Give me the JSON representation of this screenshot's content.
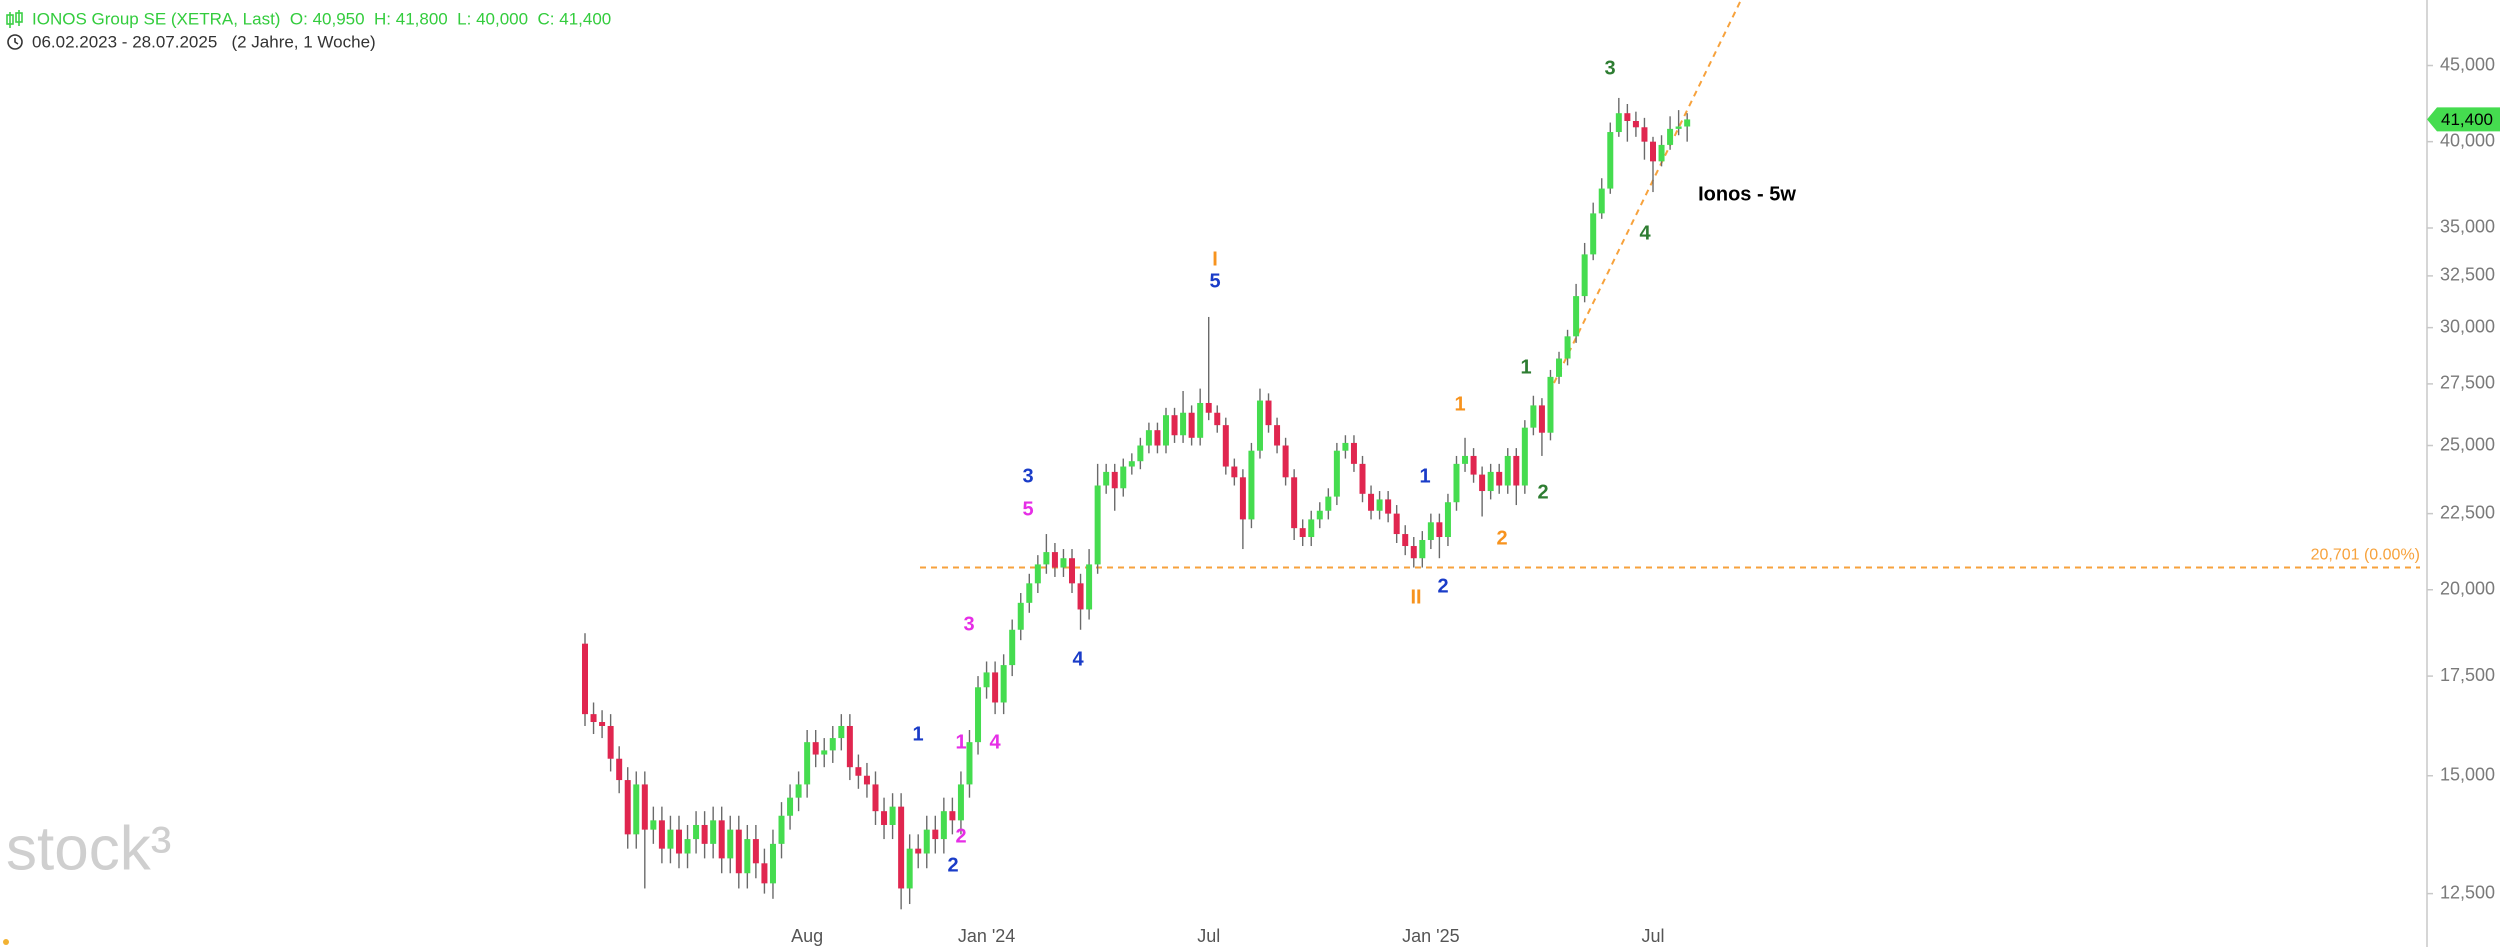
{
  "chart_data": {
    "type": "candlestick",
    "title": "IONOS Group SE (XETRA, Last)  O: 40,950  H: 41,800  L: 40,000  C: 41,400",
    "subtitle": "06.02.2023 - 28.07.2025   (2 Jahre, 1 Woche)",
    "watermark": "stock³",
    "categories": [
      null,
      null,
      null,
      null,
      null,
      null,
      null,
      null,
      null,
      null,
      null,
      null,
      null,
      null,
      null,
      null,
      null,
      null,
      null,
      null,
      null,
      null,
      null,
      null,
      null,
      null,
      "Aug",
      null,
      null,
      null,
      null,
      null,
      null,
      null,
      null,
      null,
      null,
      null,
      null,
      null,
      null,
      null,
      null,
      null,
      null,
      null,
      null,
      "Jan '24",
      null,
      null,
      null,
      null,
      null,
      null,
      null,
      null,
      null,
      null,
      null,
      null,
      null,
      null,
      null,
      null,
      null,
      null,
      null,
      null,
      null,
      null,
      null,
      null,
      null,
      "Jul",
      null,
      null,
      null,
      null,
      null,
      null,
      null,
      null,
      null,
      null,
      null,
      null,
      null,
      null,
      null,
      null,
      null,
      null,
      null,
      null,
      null,
      null,
      null,
      null,
      null,
      "Jan '25",
      null,
      null,
      null,
      null,
      null,
      null,
      null,
      null,
      null,
      null,
      null,
      null,
      null,
      null,
      null,
      null,
      null,
      null,
      null,
      null,
      null,
      null,
      null,
      null,
      null,
      "Jul",
      null,
      null,
      null,
      null
    ],
    "open": [
      18400,
      16500,
      16300,
      16200,
      15400,
      14900,
      13700,
      14800,
      13800,
      14000,
      13400,
      13800,
      13300,
      13600,
      13900,
      13500,
      14000,
      13200,
      13800,
      12900,
      13600,
      13100,
      12700,
      13500,
      14100,
      14500,
      14800,
      15800,
      15500,
      15600,
      15900,
      16200,
      15200,
      15000,
      14800,
      14200,
      13900,
      14300,
      12600,
      13400,
      13300,
      13800,
      13600,
      14200,
      14000,
      14800,
      15800,
      17200,
      17600,
      16800,
      17800,
      18800,
      19600,
      20200,
      20800,
      21200,
      20700,
      21000,
      20200,
      19400,
      20800,
      23500,
      24000,
      23400,
      24200,
      24400,
      25000,
      25600,
      25000,
      26200,
      25400,
      26300,
      25300,
      26700,
      26300,
      25800,
      24200,
      23800,
      22300,
      24800,
      26800,
      25800,
      25000,
      23800,
      22000,
      21700,
      22300,
      22600,
      23100,
      24800,
      25100,
      24300,
      23200,
      22600,
      23000,
      22500,
      21800,
      21400,
      21000,
      21600,
      22200,
      21700,
      22900,
      24300,
      24600,
      23900,
      23300,
      24000,
      23500,
      24600,
      23500,
      25700,
      26600,
      25500,
      27800,
      28600,
      29600,
      31500,
      33600,
      35800,
      37200,
      40600,
      41800,
      41300,
      40900,
      40000,
      38800,
      39800,
      40800,
      40950
    ],
    "high": [
      18700,
      16800,
      16600,
      16500,
      15700,
      15200,
      15100,
      15100,
      14300,
      14300,
      14100,
      14100,
      13900,
      14200,
      14200,
      14300,
      14300,
      14100,
      14100,
      13900,
      13900,
      13400,
      13800,
      14400,
      14800,
      15100,
      16100,
      16100,
      15900,
      16200,
      16500,
      16500,
      15500,
      15300,
      15100,
      14500,
      14600,
      14600,
      13700,
      13700,
      14100,
      14100,
      14500,
      14500,
      15100,
      16100,
      17500,
      17900,
      17900,
      18100,
      19100,
      19900,
      20500,
      21100,
      21800,
      21500,
      21300,
      21300,
      20500,
      21300,
      24300,
      24300,
      24300,
      24500,
      24700,
      25300,
      25900,
      25900,
      26500,
      26500,
      27200,
      26600,
      27300,
      30500,
      26600,
      26100,
      24500,
      24100,
      25100,
      27300,
      27100,
      26100,
      25300,
      24100,
      22300,
      22600,
      22900,
      23400,
      25100,
      25400,
      25400,
      24600,
      23500,
      23300,
      23300,
      22800,
      22100,
      21700,
      21900,
      22500,
      22500,
      23200,
      24600,
      25300,
      24900,
      24200,
      24300,
      24300,
      24900,
      24900,
      26000,
      27000,
      26900,
      28100,
      28900,
      29900,
      32100,
      34200,
      36400,
      37800,
      41200,
      42800,
      42400,
      41900,
      41500,
      40300,
      40400,
      41600,
      42000,
      41800
    ],
    "low": [
      16200,
      16000,
      15900,
      15100,
      14600,
      13400,
      13400,
      12600,
      13500,
      13100,
      13100,
      13000,
      13000,
      13300,
      13200,
      13200,
      12900,
      12900,
      12600,
      12600,
      12800,
      12500,
      12400,
      13200,
      13800,
      14200,
      14500,
      15200,
      15200,
      15300,
      15600,
      14900,
      14700,
      14500,
      13900,
      13600,
      13600,
      12200,
      12300,
      13000,
      13000,
      13300,
      13300,
      13700,
      13700,
      14500,
      15500,
      16900,
      16500,
      16500,
      17500,
      18500,
      19300,
      19900,
      20500,
      20400,
      20400,
      19900,
      18800,
      19100,
      20500,
      23200,
      22600,
      23100,
      23900,
      24100,
      24700,
      24700,
      24700,
      25100,
      25100,
      25000,
      25000,
      26000,
      25500,
      23900,
      23500,
      21300,
      22000,
      24500,
      25500,
      24700,
      23500,
      21600,
      21400,
      21400,
      22000,
      22300,
      22800,
      24500,
      24000,
      22900,
      22300,
      22300,
      22200,
      21500,
      21100,
      20700,
      20700,
      21300,
      21000,
      21400,
      22600,
      24000,
      23600,
      22400,
      23000,
      23200,
      23200,
      22800,
      23200,
      25400,
      24600,
      25200,
      27500,
      28300,
      29300,
      31200,
      33300,
      35500,
      36900,
      40300,
      40000,
      40300,
      38900,
      37000,
      38500,
      39500,
      40400,
      40000
    ],
    "close": [
      16500,
      16300,
      16200,
      15400,
      14900,
      13700,
      14800,
      13800,
      14000,
      13400,
      13800,
      13300,
      13600,
      13900,
      13500,
      14000,
      13200,
      13800,
      12900,
      13600,
      13100,
      12700,
      13500,
      14100,
      14500,
      14800,
      15800,
      15500,
      15600,
      15900,
      16200,
      15200,
      15000,
      14800,
      14200,
      13900,
      14300,
      12600,
      13400,
      13300,
      13800,
      13600,
      14200,
      14000,
      14800,
      15800,
      17200,
      17600,
      16800,
      17800,
      18800,
      19600,
      20200,
      20800,
      21200,
      20700,
      21000,
      20200,
      19400,
      20800,
      23500,
      24000,
      23400,
      24200,
      24400,
      25000,
      25600,
      25000,
      26200,
      25400,
      26300,
      25300,
      26700,
      26300,
      25800,
      24200,
      23800,
      22300,
      24800,
      26800,
      25800,
      25000,
      23800,
      22000,
      21700,
      22300,
      22600,
      23100,
      24800,
      25100,
      24300,
      23200,
      22600,
      23000,
      22500,
      21800,
      21400,
      21000,
      21600,
      22200,
      21700,
      22900,
      24300,
      24600,
      23900,
      23300,
      24000,
      23500,
      24600,
      23500,
      25700,
      26600,
      25500,
      27800,
      28600,
      29600,
      31500,
      33600,
      35800,
      37200,
      40600,
      41800,
      41300,
      40900,
      40000,
      38800,
      39800,
      40800,
      40950,
      41400
    ],
    "up_color": "#45dc4f",
    "down_color": "#e0264f",
    "log_scale": true,
    "ylim": [
      12000,
      49800
    ],
    "yticks": [
      {
        "value": 12500,
        "label": "12,500"
      },
      {
        "value": 15000,
        "label": "15,000"
      },
      {
        "value": 17500,
        "label": "17,500"
      },
      {
        "value": 20000,
        "label": "20,000"
      },
      {
        "value": 22500,
        "label": "22,500"
      },
      {
        "value": 25000,
        "label": "25,000"
      },
      {
        "value": 27500,
        "label": "27,500"
      },
      {
        "value": 30000,
        "label": "30,000"
      },
      {
        "value": 32500,
        "label": "32,500"
      },
      {
        "value": 35000,
        "label": "35,000"
      },
      {
        "value": 40000,
        "label": "40,000"
      },
      {
        "value": 45000,
        "label": "45,000"
      }
    ],
    "level": {
      "value": 20701,
      "label": "20,701 (0.00%)",
      "color": "#f7a23c"
    },
    "last_label": "41,400",
    "annotations": [
      {
        "text": "I",
        "color": "#f7931e"
      },
      {
        "text": "5",
        "color": "#1a3cc8"
      },
      {
        "text": "3",
        "color": "#1a3cc8"
      },
      {
        "text": "5",
        "color": "#e62ee6"
      },
      {
        "text": "3",
        "color": "#e62ee6"
      },
      {
        "text": "4",
        "color": "#1a3cc8"
      },
      {
        "text": "1",
        "color": "#1a3cc8"
      },
      {
        "text": "1",
        "color": "#e62ee6"
      },
      {
        "text": "4",
        "color": "#e62ee6"
      },
      {
        "text": "2",
        "color": "#e62ee6"
      },
      {
        "text": "2",
        "color": "#1a3cc8"
      },
      {
        "text": "II",
        "color": "#f7931e"
      },
      {
        "text": "2",
        "color": "#1a3cc8"
      },
      {
        "text": "1",
        "color": "#1a3cc8"
      },
      {
        "text": "1",
        "color": "#f7931e"
      },
      {
        "text": "2",
        "color": "#f7931e"
      },
      {
        "text": "1",
        "color": "#2e7d32"
      },
      {
        "text": "2",
        "color": "#2e7d32"
      },
      {
        "text": "3",
        "color": "#2e7d32"
      },
      {
        "text": "4",
        "color": "#2e7d32"
      },
      {
        "text": "Ionos - 5w",
        "color": "#000000"
      }
    ]
  }
}
